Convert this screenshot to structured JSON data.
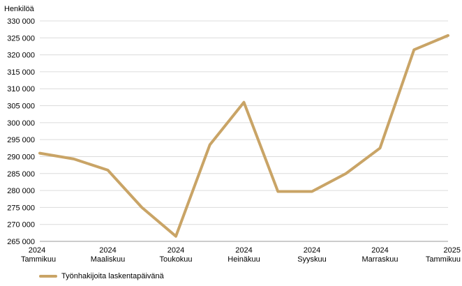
{
  "chart_data": {
    "type": "line",
    "ylabel": "Henkilöä",
    "ylim": [
      265000,
      330000
    ],
    "yticks": [
      "265 000",
      "270 000",
      "275 000",
      "280 000",
      "285 000",
      "290 000",
      "295 000",
      "300 000",
      "305 000",
      "310 000",
      "315 000",
      "320 000",
      "325 000",
      "330 000"
    ],
    "ytick_values": [
      265000,
      270000,
      275000,
      280000,
      285000,
      290000,
      295000,
      300000,
      305000,
      310000,
      315000,
      320000,
      325000,
      330000
    ],
    "categories": [
      "2024-01",
      "2024-02",
      "2024-03",
      "2024-04",
      "2024-05",
      "2024-06",
      "2024-07",
      "2024-08",
      "2024-09",
      "2024-10",
      "2024-11",
      "2024-12",
      "2025-01"
    ],
    "xtick_labels": [
      {
        "year": "2024",
        "month": "Tammikuu",
        "index": 0
      },
      {
        "year": "2024",
        "month": "Maaliskuu",
        "index": 2
      },
      {
        "year": "2024",
        "month": "Toukokuu",
        "index": 4
      },
      {
        "year": "2024",
        "month": "Heinäkuu",
        "index": 6
      },
      {
        "year": "2024",
        "month": "Syyskuu",
        "index": 8
      },
      {
        "year": "2024",
        "month": "Marraskuu",
        "index": 10
      },
      {
        "year": "2025",
        "month": "Tammikuu",
        "index": 12
      }
    ],
    "series": [
      {
        "name": "Työnhakijoita laskentapäivänä",
        "color": "#c9a466",
        "values": [
          291000,
          289300,
          286000,
          275000,
          266500,
          293500,
          306000,
          279700,
          279700,
          285000,
          292500,
          321500,
          325700
        ]
      }
    ],
    "grid": true,
    "legend_position": "bottom-left"
  }
}
